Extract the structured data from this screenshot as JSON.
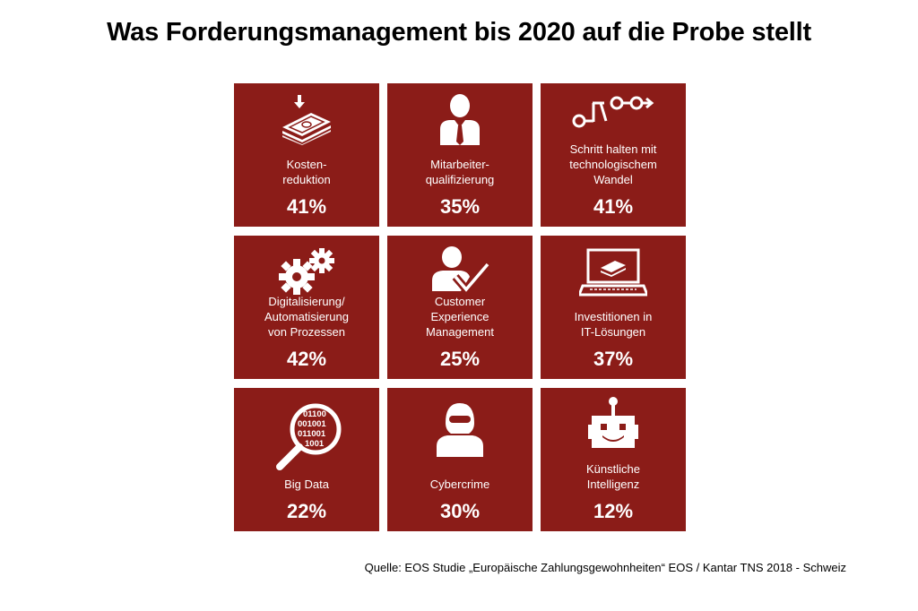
{
  "title": "Was Forderungsmanagement bis 2020 auf die Probe stellt",
  "tiles": [
    {
      "label": "Kosten-\nreduktion",
      "value": "41%",
      "icon": "money-stack-icon"
    },
    {
      "label": "Mitarbeiter-\nqualifizierung",
      "value": "35%",
      "icon": "employee-icon"
    },
    {
      "label": "Schritt halten mit\ntechnologischem\nWandel",
      "value": "41%",
      "icon": "circuit-arrow-icon"
    },
    {
      "label": "Digitalisierung/\nAutomatisierung\nvon Prozessen",
      "value": "42%",
      "icon": "gears-icon"
    },
    {
      "label": "Customer\nExperience\nManagement",
      "value": "25%",
      "icon": "customer-check-icon"
    },
    {
      "label": "Investitionen in\nIT-Lösungen",
      "value": "37%",
      "icon": "laptop-money-icon"
    },
    {
      "label": "Big Data",
      "value": "22%",
      "icon": "magnifier-binary-icon",
      "binary": [
        "01100",
        "001001",
        "011001",
        "1001"
      ]
    },
    {
      "label": "Cybercrime",
      "value": "30%",
      "icon": "hooded-hacker-icon"
    },
    {
      "label": "Künstliche\nIntelligenz",
      "value": "12%",
      "icon": "robot-icon"
    }
  ],
  "source": "Quelle: EOS Studie „Europäische Zahlungsgewohnheiten“ EOS / Kantar TNS 2018 - Schweiz",
  "colors": {
    "tile": "#8b1c18",
    "text_on_tile": "#ffffff",
    "title": "#000000"
  }
}
